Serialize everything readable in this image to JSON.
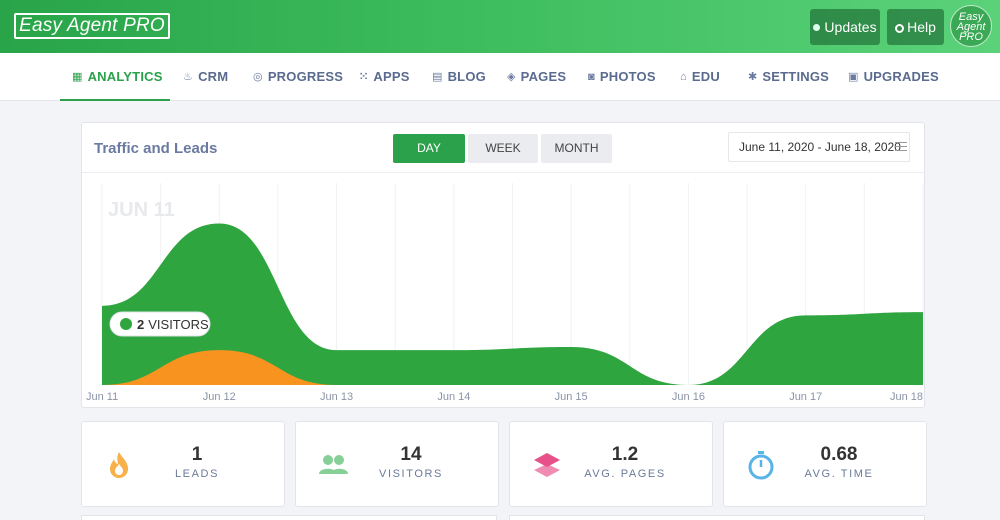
{
  "app": {
    "logo_text": "Easy Agent PRO",
    "avatar_text": "Easy Agent PRO"
  },
  "topbar": {
    "updates_label": "Updates",
    "help_label": "Help"
  },
  "nav": {
    "items": [
      {
        "label": "ANALYTICS",
        "icon": "grid-icon",
        "active": true
      },
      {
        "label": "CRM",
        "icon": "flame-icon"
      },
      {
        "label": "PROGRESS",
        "icon": "spiral-icon"
      },
      {
        "label": "APPS",
        "icon": "apps-icon"
      },
      {
        "label": "BLOG",
        "icon": "blog-icon"
      },
      {
        "label": "PAGES",
        "icon": "layers-icon"
      },
      {
        "label": "PHOTOS",
        "icon": "camera-icon"
      },
      {
        "label": "EDU",
        "icon": "institution-icon"
      },
      {
        "label": "SETTINGS",
        "icon": "gear-icon"
      },
      {
        "label": "UPGRADES",
        "icon": "store-icon"
      }
    ]
  },
  "panel": {
    "title": "Traffic and Leads",
    "segments": {
      "day": "DAY",
      "week": "WEEK",
      "month": "MONTH",
      "active": "day"
    },
    "date_range": "June 11, 2020 - June 18, 2020"
  },
  "chart_data": {
    "type": "area",
    "x": [
      "Jun 11",
      "Jun 12",
      "Jun 13",
      "Jun 14",
      "Jun 15",
      "Jun 16",
      "Jun 17",
      "Jun 18"
    ],
    "series": [
      {
        "values": [
          1.25,
          2.55,
          0.55,
          0.55,
          0.6,
          0.0,
          1.1,
          1.15
        ],
        "color": "#2ea53f"
      },
      {
        "values": [
          0.0,
          0.55,
          0.0,
          0.0,
          0.0,
          0.0,
          0.0,
          0.0
        ],
        "color": "#f7931e"
      }
    ],
    "hover_date": "JUN 11",
    "tooltip": {
      "count": "2",
      "label": "VISITORS"
    },
    "ylim": [
      0,
      3
    ]
  },
  "stats": [
    {
      "value": "1",
      "label": "LEADS",
      "icon": "flame-icon",
      "color": "#f7a43a"
    },
    {
      "value": "14",
      "label": "VISITORS",
      "icon": "users-icon",
      "color": "#7ecb8f"
    },
    {
      "value": "1.2",
      "label": "AVG. PAGES",
      "icon": "layers-icon",
      "color": "#e8508a"
    },
    {
      "value": "0.68",
      "label": "AVG. TIME",
      "icon": "stopwatch-icon",
      "color": "#57b4e6"
    }
  ]
}
